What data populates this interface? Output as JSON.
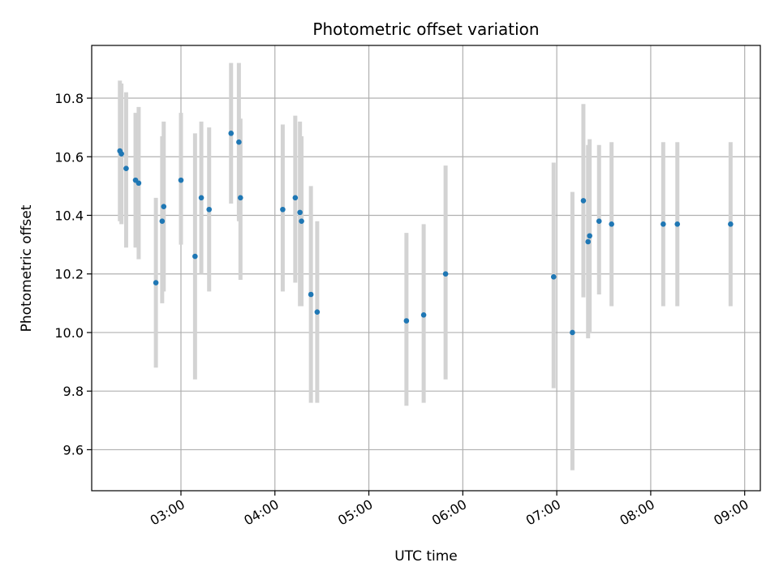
{
  "chart_data": {
    "type": "scatter",
    "title": "Photometric offset variation",
    "xlabel": "UTC time",
    "ylabel": "Photometric offset",
    "grid": true,
    "xlim": [
      "02:03",
      "09:10"
    ],
    "ylim": [
      9.46,
      10.98
    ],
    "x_ticks": [
      "03:00",
      "04:00",
      "05:00",
      "06:00",
      "07:00",
      "08:00",
      "09:00"
    ],
    "y_ticks": [
      9.6,
      9.8,
      10.0,
      10.2,
      10.4,
      10.6,
      10.8
    ],
    "y_tick_labels": [
      "9.6",
      "9.8",
      "10.0",
      "10.2",
      "10.4",
      "10.6",
      "10.8"
    ],
    "point_color": "#1f77b4",
    "errorbar_color": "#d3d3d3",
    "series": [
      {
        "points": [
          {
            "x": "02:21",
            "y": 10.62,
            "ylow": 10.38,
            "yhigh": 10.86
          },
          {
            "x": "02:22",
            "y": 10.61,
            "ylow": 10.37,
            "yhigh": 10.85
          },
          {
            "x": "02:25",
            "y": 10.56,
            "ylow": 10.29,
            "yhigh": 10.82
          },
          {
            "x": "02:31",
            "y": 10.52,
            "ylow": 10.29,
            "yhigh": 10.75
          },
          {
            "x": "02:33",
            "y": 10.51,
            "ylow": 10.25,
            "yhigh": 10.77
          },
          {
            "x": "02:44",
            "y": 10.17,
            "ylow": 9.88,
            "yhigh": 10.46
          },
          {
            "x": "02:48",
            "y": 10.38,
            "ylow": 10.1,
            "yhigh": 10.67
          },
          {
            "x": "02:49",
            "y": 10.43,
            "ylow": 10.14,
            "yhigh": 10.72
          },
          {
            "x": "03:00",
            "y": 10.52,
            "ylow": 10.3,
            "yhigh": 10.75
          },
          {
            "x": "03:09",
            "y": 10.26,
            "ylow": 9.84,
            "yhigh": 10.68
          },
          {
            "x": "03:13",
            "y": 10.46,
            "ylow": 10.2,
            "yhigh": 10.72
          },
          {
            "x": "03:18",
            "y": 10.42,
            "ylow": 10.14,
            "yhigh": 10.7
          },
          {
            "x": "03:32",
            "y": 10.68,
            "ylow": 10.44,
            "yhigh": 10.92
          },
          {
            "x": "03:37",
            "y": 10.65,
            "ylow": 10.38,
            "yhigh": 10.92
          },
          {
            "x": "03:38",
            "y": 10.46,
            "ylow": 10.18,
            "yhigh": 10.73
          },
          {
            "x": "04:05",
            "y": 10.42,
            "ylow": 10.14,
            "yhigh": 10.71
          },
          {
            "x": "04:13",
            "y": 10.46,
            "ylow": 10.17,
            "yhigh": 10.74
          },
          {
            "x": "04:16",
            "y": 10.41,
            "ylow": 10.09,
            "yhigh": 10.72
          },
          {
            "x": "04:17",
            "y": 10.38,
            "ylow": 10.09,
            "yhigh": 10.67
          },
          {
            "x": "04:23",
            "y": 10.13,
            "ylow": 9.76,
            "yhigh": 10.5
          },
          {
            "x": "04:27",
            "y": 10.07,
            "ylow": 9.76,
            "yhigh": 10.38
          },
          {
            "x": "05:24",
            "y": 10.04,
            "ylow": 9.75,
            "yhigh": 10.34
          },
          {
            "x": "05:35",
            "y": 10.06,
            "ylow": 9.76,
            "yhigh": 10.37
          },
          {
            "x": "05:49",
            "y": 10.2,
            "ylow": 9.84,
            "yhigh": 10.57
          },
          {
            "x": "06:58",
            "y": 10.19,
            "ylow": 9.81,
            "yhigh": 10.58
          },
          {
            "x": "07:10",
            "y": 10.0,
            "ylow": 9.53,
            "yhigh": 10.48
          },
          {
            "x": "07:17",
            "y": 10.45,
            "ylow": 10.12,
            "yhigh": 10.78
          },
          {
            "x": "07:20",
            "y": 10.31,
            "ylow": 9.98,
            "yhigh": 10.64
          },
          {
            "x": "07:21",
            "y": 10.33,
            "ylow": 10.0,
            "yhigh": 10.66
          },
          {
            "x": "07:27",
            "y": 10.38,
            "ylow": 10.13,
            "yhigh": 10.64
          },
          {
            "x": "07:35",
            "y": 10.37,
            "ylow": 10.09,
            "yhigh": 10.65
          },
          {
            "x": "08:08",
            "y": 10.37,
            "ylow": 10.09,
            "yhigh": 10.65
          },
          {
            "x": "08:17",
            "y": 10.37,
            "ylow": 10.09,
            "yhigh": 10.65
          },
          {
            "x": "08:51",
            "y": 10.37,
            "ylow": 10.09,
            "yhigh": 10.65
          }
        ]
      }
    ]
  }
}
